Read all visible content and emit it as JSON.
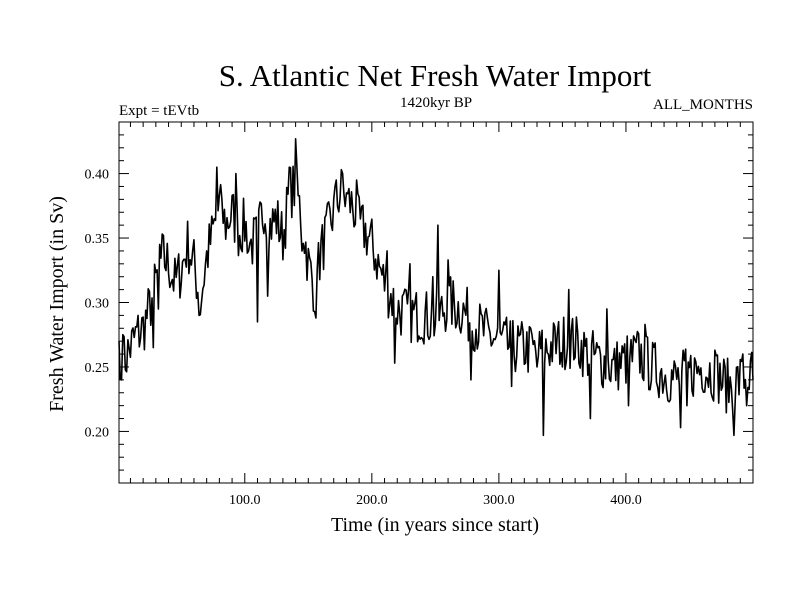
{
  "chart_data": {
    "type": "line",
    "title": "S. Atlantic Net Fresh Water Import",
    "subtitle_left": "Expt = tEVtb",
    "subtitle_center": "1420kyr BP",
    "subtitle_right": "ALL_MONTHS",
    "xlabel": "Time (in years since start)",
    "ylabel": "Fresh Water Import (in Sv)",
    "xlim": [
      1,
      500
    ],
    "ylim": [
      0.16,
      0.44
    ],
    "xticks": [
      100,
      200,
      300,
      400
    ],
    "xtick_labels": [
      "100.0",
      "200.0",
      "300.0",
      "400.0"
    ],
    "yticks": [
      0.2,
      0.25,
      0.3,
      0.35,
      0.4
    ],
    "ytick_labels": [
      "0.20",
      "0.25",
      "0.30",
      "0.35",
      "0.40"
    ],
    "series": [
      {
        "name": "Fresh Water Import",
        "color": "#000000",
        "anchors": [
          [
            1,
            0.265
          ],
          [
            5,
            0.255
          ],
          [
            10,
            0.265
          ],
          [
            15,
            0.275
          ],
          [
            20,
            0.28
          ],
          [
            25,
            0.295
          ],
          [
            30,
            0.315
          ],
          [
            35,
            0.335
          ],
          [
            40,
            0.33
          ],
          [
            45,
            0.315
          ],
          [
            50,
            0.325
          ],
          [
            55,
            0.345
          ],
          [
            60,
            0.33
          ],
          [
            65,
            0.3
          ],
          [
            70,
            0.335
          ],
          [
            75,
            0.355
          ],
          [
            80,
            0.375
          ],
          [
            85,
            0.36
          ],
          [
            90,
            0.37
          ],
          [
            95,
            0.355
          ],
          [
            100,
            0.36
          ],
          [
            105,
            0.345
          ],
          [
            110,
            0.35
          ],
          [
            115,
            0.375
          ],
          [
            120,
            0.36
          ],
          [
            125,
            0.365
          ],
          [
            130,
            0.35
          ],
          [
            135,
            0.385
          ],
          [
            140,
            0.39
          ],
          [
            145,
            0.365
          ],
          [
            150,
            0.33
          ],
          [
            155,
            0.31
          ],
          [
            160,
            0.34
          ],
          [
            165,
            0.355
          ],
          [
            170,
            0.37
          ],
          [
            175,
            0.385
          ],
          [
            180,
            0.38
          ],
          [
            185,
            0.375
          ],
          [
            190,
            0.36
          ],
          [
            195,
            0.355
          ],
          [
            200,
            0.345
          ],
          [
            205,
            0.33
          ],
          [
            210,
            0.315
          ],
          [
            215,
            0.305
          ],
          [
            220,
            0.295
          ],
          [
            230,
            0.29
          ],
          [
            240,
            0.29
          ],
          [
            250,
            0.285
          ],
          [
            260,
            0.3
          ],
          [
            270,
            0.295
          ],
          [
            280,
            0.285
          ],
          [
            290,
            0.275
          ],
          [
            300,
            0.27
          ],
          [
            310,
            0.265
          ],
          [
            320,
            0.265
          ],
          [
            330,
            0.26
          ],
          [
            340,
            0.265
          ],
          [
            350,
            0.27
          ],
          [
            360,
            0.27
          ],
          [
            370,
            0.26
          ],
          [
            380,
            0.255
          ],
          [
            390,
            0.25
          ],
          [
            400,
            0.255
          ],
          [
            410,
            0.26
          ],
          [
            420,
            0.25
          ],
          [
            430,
            0.245
          ],
          [
            440,
            0.24
          ],
          [
            450,
            0.245
          ],
          [
            460,
            0.25
          ],
          [
            470,
            0.245
          ],
          [
            480,
            0.235
          ],
          [
            490,
            0.24
          ],
          [
            500,
            0.245
          ]
        ],
        "noise_amplitude": 0.022,
        "spikes": [
          [
            1,
            0.27
          ],
          [
            3,
            0.24
          ],
          [
            4,
            0.275
          ],
          [
            28,
            0.265
          ],
          [
            32,
            0.295
          ],
          [
            33,
            0.345
          ],
          [
            64,
            0.29
          ],
          [
            78,
            0.405
          ],
          [
            82,
            0.38
          ],
          [
            93,
            0.4
          ],
          [
            103,
            0.34
          ],
          [
            110,
            0.285
          ],
          [
            118,
            0.305
          ],
          [
            135,
            0.405
          ],
          [
            140,
            0.427
          ],
          [
            145,
            0.34
          ],
          [
            156,
            0.288
          ],
          [
            157,
            0.325
          ],
          [
            172,
            0.395
          ],
          [
            176,
            0.403
          ],
          [
            180,
            0.385
          ],
          [
            188,
            0.395
          ],
          [
            212,
            0.34
          ],
          [
            218,
            0.253
          ],
          [
            230,
            0.33
          ],
          [
            248,
            0.32
          ],
          [
            252,
            0.36
          ],
          [
            260,
            0.333
          ],
          [
            278,
            0.24
          ],
          [
            300,
            0.325
          ],
          [
            310,
            0.235
          ],
          [
            325,
            0.28
          ],
          [
            330,
            0.25
          ],
          [
            335,
            0.197
          ],
          [
            350,
            0.25
          ],
          [
            355,
            0.31
          ],
          [
            372,
            0.21
          ],
          [
            385,
            0.295
          ],
          [
            402,
            0.22
          ],
          [
            415,
            0.283
          ],
          [
            443,
            0.203
          ],
          [
            448,
            0.22
          ],
          [
            470,
            0.263
          ],
          [
            485,
            0.197
          ],
          [
            492,
            0.26
          ],
          [
            495,
            0.22
          ],
          [
            498,
            0.255
          ],
          [
            500,
            0.24
          ]
        ]
      }
    ]
  }
}
